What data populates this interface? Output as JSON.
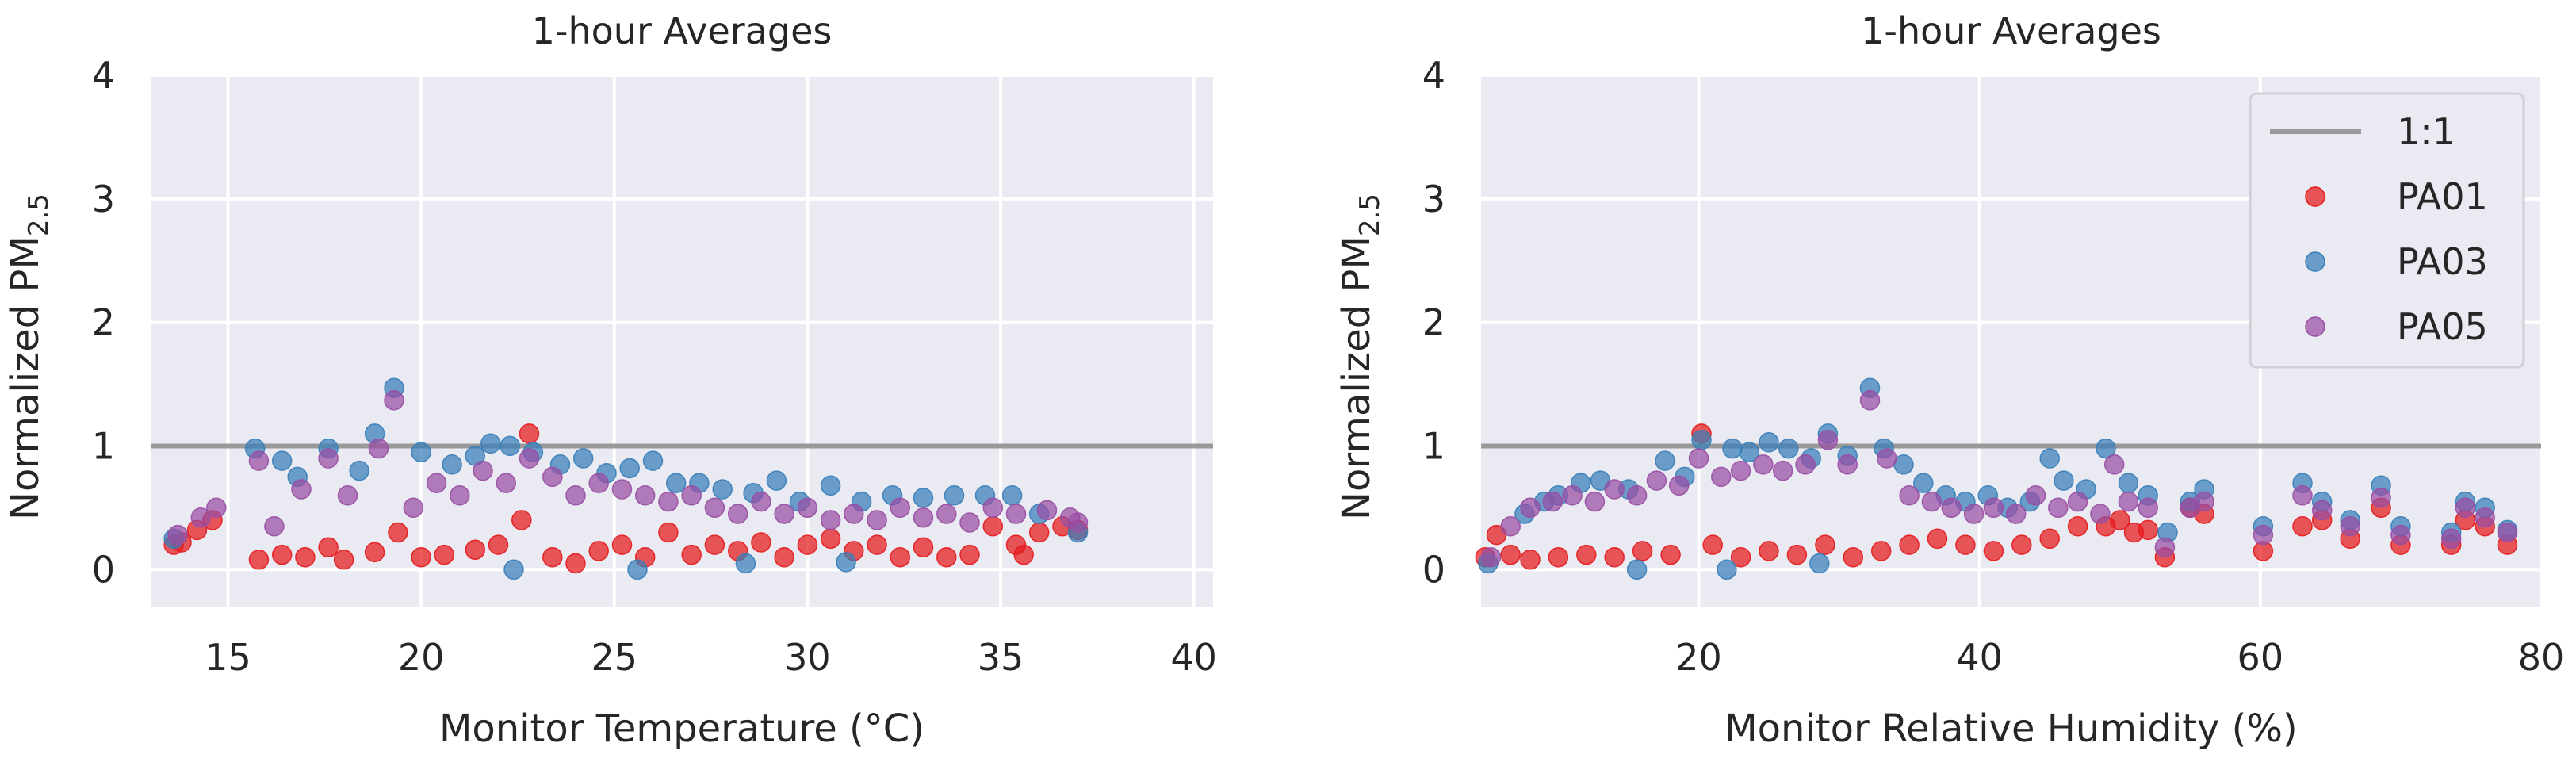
{
  "chart_data": [
    {
      "type": "scatter",
      "title": "1-hour Averages",
      "xlabel": "Monitor Temperature (°C)",
      "ylabel": "Normalized PM",
      "ylabel_sub": "2.5",
      "xlim": [
        13,
        40.5
      ],
      "ylim": [
        -0.3,
        4.0
      ],
      "xticks": [
        15,
        20,
        25,
        30,
        35,
        40
      ],
      "yticks": [
        0,
        1,
        2,
        3,
        4
      ],
      "reference_line": {
        "name": "1:1",
        "y": 1
      },
      "grid": true,
      "series": [
        {
          "name": "PA01",
          "color": "#e41a1c",
          "points": [
            [
              13.6,
              0.2
            ],
            [
              13.8,
              0.22
            ],
            [
              14.2,
              0.32
            ],
            [
              14.6,
              0.4
            ],
            [
              15.8,
              0.08
            ],
            [
              16.4,
              0.12
            ],
            [
              17.0,
              0.1
            ],
            [
              17.6,
              0.18
            ],
            [
              18.0,
              0.08
            ],
            [
              18.8,
              0.14
            ],
            [
              19.4,
              0.3
            ],
            [
              20.0,
              0.1
            ],
            [
              20.6,
              0.12
            ],
            [
              21.4,
              0.16
            ],
            [
              22.0,
              0.2
            ],
            [
              22.8,
              1.1
            ],
            [
              22.6,
              0.4
            ],
            [
              23.4,
              0.1
            ],
            [
              24.0,
              0.05
            ],
            [
              24.6,
              0.15
            ],
            [
              25.2,
              0.2
            ],
            [
              25.8,
              0.1
            ],
            [
              26.4,
              0.3
            ],
            [
              27.0,
              0.12
            ],
            [
              27.6,
              0.2
            ],
            [
              28.2,
              0.15
            ],
            [
              28.8,
              0.22
            ],
            [
              29.4,
              0.1
            ],
            [
              30.0,
              0.2
            ],
            [
              30.6,
              0.25
            ],
            [
              31.2,
              0.15
            ],
            [
              31.8,
              0.2
            ],
            [
              32.4,
              0.1
            ],
            [
              33.0,
              0.18
            ],
            [
              33.6,
              0.1
            ],
            [
              34.2,
              0.12
            ],
            [
              34.8,
              0.35
            ],
            [
              35.4,
              0.2
            ],
            [
              35.6,
              0.12
            ],
            [
              36.0,
              0.3
            ],
            [
              36.6,
              0.35
            ],
            [
              37.0,
              0.32
            ]
          ]
        },
        {
          "name": "PA03",
          "color": "#377eb8",
          "points": [
            [
              13.6,
              0.25
            ],
            [
              15.7,
              0.98
            ],
            [
              16.4,
              0.88
            ],
            [
              16.8,
              0.75
            ],
            [
              17.6,
              0.98
            ],
            [
              18.4,
              0.8
            ],
            [
              18.8,
              1.1
            ],
            [
              19.3,
              1.47
            ],
            [
              20.0,
              0.95
            ],
            [
              20.8,
              0.85
            ],
            [
              21.4,
              0.92
            ],
            [
              21.8,
              1.02
            ],
            [
              22.3,
              1.0
            ],
            [
              22.9,
              0.95
            ],
            [
              23.6,
              0.85
            ],
            [
              24.2,
              0.9
            ],
            [
              24.8,
              0.78
            ],
            [
              25.4,
              0.82
            ],
            [
              26.0,
              0.88
            ],
            [
              26.6,
              0.7
            ],
            [
              27.2,
              0.7
            ],
            [
              27.8,
              0.65
            ],
            [
              28.6,
              0.62
            ],
            [
              29.2,
              0.72
            ],
            [
              29.8,
              0.55
            ],
            [
              30.6,
              0.68
            ],
            [
              31.4,
              0.55
            ],
            [
              32.2,
              0.6
            ],
            [
              33.0,
              0.58
            ],
            [
              33.8,
              0.6
            ],
            [
              34.6,
              0.6
            ],
            [
              35.3,
              0.6
            ],
            [
              36.0,
              0.45
            ],
            [
              37.0,
              0.3
            ],
            [
              22.4,
              0.0
            ],
            [
              25.6,
              0.0
            ],
            [
              28.4,
              0.05
            ],
            [
              31.0,
              0.06
            ]
          ]
        },
        {
          "name": "PA05",
          "color": "#984ea3",
          "points": [
            [
              13.7,
              0.28
            ],
            [
              14.3,
              0.42
            ],
            [
              14.7,
              0.5
            ],
            [
              15.8,
              0.88
            ],
            [
              16.2,
              0.35
            ],
            [
              16.9,
              0.65
            ],
            [
              17.6,
              0.9
            ],
            [
              18.1,
              0.6
            ],
            [
              18.9,
              0.98
            ],
            [
              19.3,
              1.37
            ],
            [
              19.8,
              0.5
            ],
            [
              20.4,
              0.7
            ],
            [
              21.0,
              0.6
            ],
            [
              21.6,
              0.8
            ],
            [
              22.2,
              0.7
            ],
            [
              22.8,
              0.9
            ],
            [
              23.4,
              0.75
            ],
            [
              24.0,
              0.6
            ],
            [
              24.6,
              0.7
            ],
            [
              25.2,
              0.65
            ],
            [
              25.8,
              0.6
            ],
            [
              26.4,
              0.55
            ],
            [
              27.0,
              0.6
            ],
            [
              27.6,
              0.5
            ],
            [
              28.2,
              0.45
            ],
            [
              28.8,
              0.55
            ],
            [
              29.4,
              0.45
            ],
            [
              30.0,
              0.5
            ],
            [
              30.6,
              0.4
            ],
            [
              31.2,
              0.45
            ],
            [
              31.8,
              0.4
            ],
            [
              32.4,
              0.5
            ],
            [
              33.0,
              0.42
            ],
            [
              33.6,
              0.45
            ],
            [
              34.2,
              0.38
            ],
            [
              34.8,
              0.5
            ],
            [
              35.4,
              0.45
            ],
            [
              36.2,
              0.48
            ],
            [
              36.8,
              0.42
            ],
            [
              37.0,
              0.38
            ]
          ]
        }
      ]
    },
    {
      "type": "scatter",
      "title": "1-hour Averages",
      "xlabel": "Monitor Relative Humidity (%)",
      "ylabel": "Normalized PM",
      "ylabel_sub": "2.5",
      "xlim": [
        4.5,
        80
      ],
      "ylim": [
        -0.3,
        4.0
      ],
      "xticks": [
        20,
        40,
        60,
        80
      ],
      "yticks": [
        0,
        1,
        2,
        3,
        4
      ],
      "reference_line": {
        "name": "1:1",
        "y": 1
      },
      "legend": {
        "position": "top-right",
        "entries": [
          "1:1",
          "PA01",
          "PA03",
          "PA05"
        ]
      },
      "grid": true,
      "series": [
        {
          "name": "PA01",
          "color": "#e41a1c",
          "points": [
            [
              4.8,
              0.1
            ],
            [
              5.6,
              0.28
            ],
            [
              6.6,
              0.12
            ],
            [
              8.0,
              0.08
            ],
            [
              10.0,
              0.1
            ],
            [
              12.0,
              0.12
            ],
            [
              14.0,
              0.1
            ],
            [
              16.0,
              0.15
            ],
            [
              18.0,
              0.12
            ],
            [
              20.2,
              1.1
            ],
            [
              21.0,
              0.2
            ],
            [
              23.0,
              0.1
            ],
            [
              25.0,
              0.15
            ],
            [
              27.0,
              0.12
            ],
            [
              29.0,
              0.2
            ],
            [
              31.0,
              0.1
            ],
            [
              33.0,
              0.15
            ],
            [
              35.0,
              0.2
            ],
            [
              37.0,
              0.25
            ],
            [
              39.0,
              0.2
            ],
            [
              41.0,
              0.15
            ],
            [
              43.0,
              0.2
            ],
            [
              45.0,
              0.25
            ],
            [
              47.0,
              0.35
            ],
            [
              49.0,
              0.35
            ],
            [
              50.0,
              0.4
            ],
            [
              51.0,
              0.3
            ],
            [
              52.0,
              0.32
            ],
            [
              53.2,
              0.1
            ],
            [
              55.0,
              0.5
            ],
            [
              56.0,
              0.45
            ],
            [
              60.2,
              0.15
            ],
            [
              63.0,
              0.35
            ],
            [
              64.4,
              0.4
            ],
            [
              66.4,
              0.25
            ],
            [
              68.6,
              0.5
            ],
            [
              70.0,
              0.2
            ],
            [
              73.6,
              0.2
            ],
            [
              74.6,
              0.4
            ],
            [
              76.0,
              0.35
            ],
            [
              77.6,
              0.2
            ]
          ]
        },
        {
          "name": "PA03",
          "color": "#377eb8",
          "points": [
            [
              5.0,
              0.05
            ],
            [
              7.6,
              0.45
            ],
            [
              9.0,
              0.55
            ],
            [
              10.0,
              0.6
            ],
            [
              11.6,
              0.7
            ],
            [
              13.0,
              0.72
            ],
            [
              15.0,
              0.65
            ],
            [
              17.6,
              0.88
            ],
            [
              19.0,
              0.75
            ],
            [
              20.2,
              1.05
            ],
            [
              22.4,
              0.98
            ],
            [
              23.6,
              0.95
            ],
            [
              25.0,
              1.03
            ],
            [
              26.4,
              0.98
            ],
            [
              28.0,
              0.9
            ],
            [
              29.2,
              1.1
            ],
            [
              30.6,
              0.92
            ],
            [
              32.2,
              1.47
            ],
            [
              33.2,
              0.98
            ],
            [
              34.6,
              0.85
            ],
            [
              36.0,
              0.7
            ],
            [
              37.6,
              0.6
            ],
            [
              39.0,
              0.55
            ],
            [
              40.6,
              0.6
            ],
            [
              42.0,
              0.5
            ],
            [
              43.6,
              0.55
            ],
            [
              45.0,
              0.9
            ],
            [
              46.0,
              0.72
            ],
            [
              47.6,
              0.65
            ],
            [
              49.0,
              0.98
            ],
            [
              50.6,
              0.7
            ],
            [
              52.0,
              0.6
            ],
            [
              53.4,
              0.3
            ],
            [
              55.0,
              0.55
            ],
            [
              56.0,
              0.65
            ],
            [
              60.2,
              0.35
            ],
            [
              63.0,
              0.7
            ],
            [
              64.4,
              0.55
            ],
            [
              66.4,
              0.4
            ],
            [
              68.6,
              0.68
            ],
            [
              70.0,
              0.35
            ],
            [
              73.6,
              0.3
            ],
            [
              74.6,
              0.55
            ],
            [
              76.0,
              0.5
            ],
            [
              77.6,
              0.32
            ],
            [
              15.6,
              0.0
            ],
            [
              22.0,
              0.0
            ],
            [
              28.6,
              0.05
            ]
          ]
        },
        {
          "name": "PA05",
          "color": "#984ea3",
          "points": [
            [
              5.2,
              0.1
            ],
            [
              6.6,
              0.35
            ],
            [
              8.0,
              0.5
            ],
            [
              9.6,
              0.55
            ],
            [
              11.0,
              0.6
            ],
            [
              12.6,
              0.55
            ],
            [
              14.0,
              0.65
            ],
            [
              15.6,
              0.6
            ],
            [
              17.0,
              0.72
            ],
            [
              18.6,
              0.68
            ],
            [
              20.0,
              0.9
            ],
            [
              21.6,
              0.75
            ],
            [
              23.0,
              0.8
            ],
            [
              24.6,
              0.85
            ],
            [
              26.0,
              0.8
            ],
            [
              27.6,
              0.85
            ],
            [
              29.2,
              1.05
            ],
            [
              30.6,
              0.85
            ],
            [
              32.2,
              1.37
            ],
            [
              33.4,
              0.9
            ],
            [
              35.0,
              0.6
            ],
            [
              36.6,
              0.55
            ],
            [
              38.0,
              0.5
            ],
            [
              39.6,
              0.45
            ],
            [
              41.0,
              0.5
            ],
            [
              42.6,
              0.45
            ],
            [
              44.0,
              0.6
            ],
            [
              45.6,
              0.5
            ],
            [
              47.0,
              0.55
            ],
            [
              48.6,
              0.45
            ],
            [
              49.6,
              0.85
            ],
            [
              50.6,
              0.55
            ],
            [
              52.0,
              0.5
            ],
            [
              53.2,
              0.18
            ],
            [
              55.0,
              0.5
            ],
            [
              56.0,
              0.55
            ],
            [
              60.2,
              0.28
            ],
            [
              63.0,
              0.6
            ],
            [
              64.4,
              0.48
            ],
            [
              66.4,
              0.35
            ],
            [
              68.6,
              0.58
            ],
            [
              70.0,
              0.28
            ],
            [
              73.6,
              0.25
            ],
            [
              74.6,
              0.5
            ],
            [
              76.0,
              0.42
            ],
            [
              77.6,
              0.3
            ]
          ]
        }
      ]
    }
  ]
}
